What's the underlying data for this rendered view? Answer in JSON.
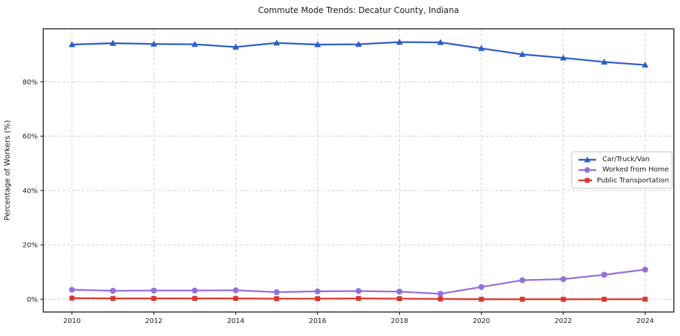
{
  "figure": {
    "background_color": "#ffffff",
    "text_color": "#1a1a1a",
    "spine_color": "#1a1a1a",
    "grid_color": "#cfcfcf",
    "legend_border_color": "#c4c4c4"
  },
  "chart_data": {
    "type": "line",
    "title": "Commute Mode Trends: Decatur County, Indiana",
    "xlabel": "",
    "ylabel": "Percentage of Workers (%)",
    "x": [
      2010,
      2011,
      2012,
      2013,
      2014,
      2015,
      2016,
      2017,
      2018,
      2019,
      2020,
      2021,
      2022,
      2023,
      2024
    ],
    "series": [
      {
        "name": "Car/Truck/Van",
        "color": "#2d5ec6",
        "marker": "triangle",
        "values": [
          93.7,
          94.2,
          93.9,
          93.8,
          92.8,
          94.3,
          93.7,
          93.8,
          94.6,
          94.5,
          92.3,
          90.1,
          88.8,
          87.3,
          86.2
        ]
      },
      {
        "name": "Worked from Home",
        "color": "#9370db",
        "marker": "circle",
        "values": [
          3.5,
          3.1,
          3.2,
          3.2,
          3.3,
          2.6,
          2.9,
          3.0,
          2.8,
          2.0,
          4.5,
          7.0,
          7.4,
          9.0,
          10.9
        ]
      },
      {
        "name": "Public Transportation",
        "color": "#d9362e",
        "marker": "square",
        "values": [
          0.4,
          0.3,
          0.3,
          0.3,
          0.3,
          0.2,
          0.2,
          0.3,
          0.2,
          0.1,
          0.0,
          0.0,
          0.0,
          0.0,
          0.0
        ]
      }
    ],
    "x_ticks": [
      2010,
      2012,
      2014,
      2016,
      2018,
      2020,
      2022,
      2024
    ],
    "x_tick_labels": [
      "2010",
      "2012",
      "2014",
      "2016",
      "2018",
      "2020",
      "2022",
      "2024"
    ],
    "y_ticks": [
      0,
      20,
      40,
      60,
      80
    ],
    "y_tick_labels": [
      "0%",
      "20%",
      "40%",
      "60%",
      "80%"
    ],
    "xlim": [
      2009.3,
      2024.7
    ],
    "ylim": [
      -4.7,
      99.5
    ],
    "grid": true,
    "grid_style": "dashed",
    "legend_position": "center right"
  }
}
